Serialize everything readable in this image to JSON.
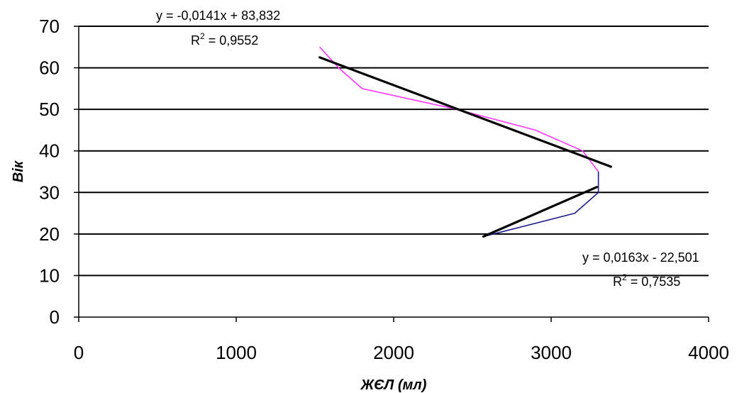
{
  "chart_data": {
    "type": "line",
    "xlabel": "ЖЄЛ (мл)",
    "ylabel": "Вік",
    "xlim": [
      0,
      4000
    ],
    "ylim": [
      0,
      70
    ],
    "x_ticks": [
      0,
      1000,
      2000,
      3000,
      4000
    ],
    "y_ticks": [
      0,
      10,
      20,
      30,
      40,
      50,
      60,
      70
    ],
    "grid": "horizontal",
    "legend": "none",
    "series": [
      {
        "color": "#1a1a8c",
        "points": [
          [
            2580,
            19.5
          ],
          [
            3150,
            25
          ],
          [
            3300,
            30
          ],
          [
            3300,
            35
          ]
        ]
      },
      {
        "color": "#ff33ff",
        "points": [
          [
            3300,
            35
          ],
          [
            3200,
            40
          ],
          [
            2900,
            45
          ],
          [
            2400,
            50
          ],
          [
            1800,
            55
          ],
          [
            1650,
            60
          ],
          [
            1530,
            65
          ]
        ]
      }
    ],
    "trendlines": [
      {
        "color": "#000000",
        "points": [
          [
            1530,
            62.5
          ],
          [
            3380,
            36.2
          ]
        ],
        "equation": "y = -0,0141x + 83,832",
        "r2_prefix": "R",
        "r2_sup": "2",
        "r2_value": " = 0,9552"
      },
      {
        "color": "#000000",
        "points": [
          [
            2570,
            19.4
          ],
          [
            3290,
            31.3
          ]
        ],
        "equation": "y = 0,0163x - 22,501",
        "r2_prefix": "R",
        "r2_sup": "2",
        "r2_value": " = 0,7535"
      }
    ]
  }
}
